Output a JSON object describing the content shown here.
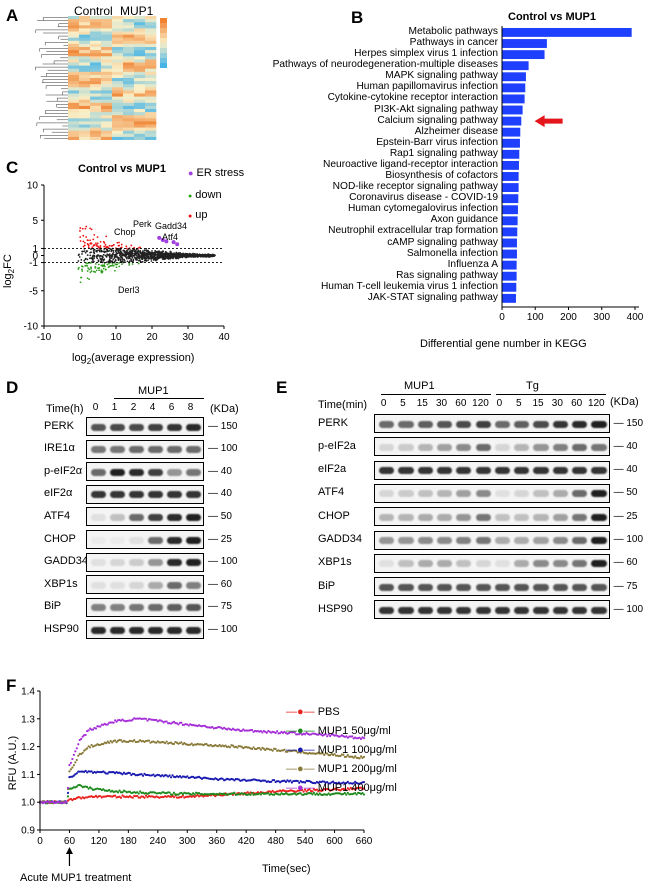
{
  "panels": {
    "A": "A",
    "B": "B",
    "C": "C",
    "D": "D",
    "E": "E",
    "F": "F"
  },
  "heatmap": {
    "groups": [
      "Control",
      "MUP1"
    ]
  },
  "kegg": {
    "title": "Control vs MUP1",
    "xlabel": "Differential gene number in KEGG",
    "ticks": [
      "0",
      "100",
      "200",
      "300",
      "400"
    ],
    "pathways": [
      "Metabolic pathways",
      "Pathways in cancer",
      "Herpes simplex virus 1 infection",
      "Pathways of neurodegeneration-multiple diseases",
      "MAPK signaling pathway",
      "Human papillomavirus infection",
      "Cytokine-cytokine receptor interaction",
      "PI3K-Akt signaling pathway",
      "Calcium signaling pathway",
      "Alzheimer disease",
      "Epstein-Barr virus infection",
      "Rap1 signaling pathway",
      "Neuroactive ligand-receptor interaction",
      "Biosynthesis of cofactors",
      "NOD-like receptor signaling pathway",
      "Coronavirus disease - COVID-19",
      "Human cytomegalovirus infection",
      "Axon guidance",
      "Neutrophil extracellular trap formation",
      "cAMP signaling pathway",
      "Salmonella infection",
      "Influenza A",
      "Ras signaling pathway",
      "Human T-cell leukemia virus 1 infection",
      "JAK-STAT signaling pathway"
    ],
    "values": [
      390,
      135,
      128,
      80,
      72,
      70,
      68,
      62,
      58,
      55,
      54,
      52,
      51,
      50,
      50,
      49,
      48,
      47,
      46,
      45,
      45,
      44,
      44,
      43,
      42
    ],
    "bar_color": "#1f3fff",
    "arrow_color": "#e4161b"
  },
  "ma": {
    "title": "Control vs MUP1",
    "xlabel": "log2(average expression)",
    "ylabel": "log2FC",
    "xticks": [
      "-10",
      "0",
      "10",
      "20",
      "30",
      "40"
    ],
    "yticks": [
      "10",
      "5",
      "1",
      "0",
      "-1",
      "-5",
      "-10"
    ],
    "legend": [
      "ER stress",
      "down",
      "up"
    ],
    "genes": [
      "Perk",
      "Chop",
      "Gadd34",
      "Atf4",
      "Derl3"
    ],
    "colors": {
      "up": "#ee1111",
      "down": "#2f9e1e",
      "ns": "#222222",
      "er": "#a040e0"
    }
  },
  "blotD": {
    "header": "MUP1",
    "time_label": "Time(h)",
    "times": [
      "0",
      "1",
      "2",
      "4",
      "6",
      "8"
    ],
    "unit": "(KDa)",
    "rows": [
      {
        "name": "PERK",
        "mw": [
          "150"
        ],
        "sig": [
          0.7,
          0.75,
          0.75,
          0.8,
          0.85,
          0.9
        ]
      },
      {
        "name": "IRE1α",
        "mw": [
          "100"
        ],
        "sig": [
          0.55,
          0.55,
          0.6,
          0.6,
          0.6,
          0.6
        ]
      },
      {
        "name": "p-eIF2α",
        "mw": [
          "40"
        ],
        "sig": [
          0.6,
          0.95,
          0.9,
          0.8,
          0.4,
          0.55
        ]
      },
      {
        "name": "eIF2α",
        "mw": [
          "40"
        ],
        "sig": [
          0.85,
          0.85,
          0.85,
          0.85,
          0.85,
          0.85
        ]
      },
      {
        "name": "ATF4",
        "mw": [
          "50"
        ],
        "sig": [
          0.05,
          0.2,
          0.6,
          0.8,
          0.9,
          0.95
        ]
      },
      {
        "name": "CHOP",
        "mw": [
          "25"
        ],
        "sig": [
          0.0,
          0.0,
          0.05,
          0.6,
          0.9,
          0.95
        ]
      },
      {
        "name": "GADD34",
        "mw": [
          "100"
        ],
        "sig": [
          0.05,
          0.1,
          0.15,
          0.4,
          0.9,
          0.95
        ]
      },
      {
        "name": "XBP1s",
        "mw": [
          "60"
        ],
        "sig": [
          0.05,
          0.05,
          0.1,
          0.3,
          0.6,
          0.5
        ]
      },
      {
        "name": "BiP",
        "mw": [
          "75"
        ],
        "sig": [
          0.5,
          0.5,
          0.55,
          0.6,
          0.65,
          0.7
        ]
      },
      {
        "name": "HSP90",
        "mw": [
          "100"
        ],
        "sig": [
          0.9,
          0.9,
          0.9,
          0.9,
          0.9,
          0.9
        ]
      }
    ]
  },
  "blotE": {
    "groups": [
      "MUP1",
      "Tg"
    ],
    "time_label": "Time(min)",
    "times": [
      "0",
      "5",
      "15",
      "30",
      "60",
      "120",
      "0",
      "5",
      "15",
      "30",
      "60",
      "120"
    ],
    "unit": "(KDa)",
    "rows": [
      {
        "name": "PERK",
        "mw": [
          "150"
        ],
        "sig": [
          0.6,
          0.6,
          0.65,
          0.7,
          0.75,
          0.8,
          0.6,
          0.65,
          0.75,
          0.85,
          0.9,
          0.95
        ]
      },
      {
        "name": "p-eIF2a",
        "mw": [
          "40"
        ],
        "sig": [
          0.1,
          0.15,
          0.25,
          0.35,
          0.45,
          0.6,
          0.1,
          0.25,
          0.4,
          0.5,
          0.6,
          0.55
        ]
      },
      {
        "name": "eIF2a",
        "mw": [
          "40"
        ],
        "sig": [
          0.85,
          0.85,
          0.85,
          0.85,
          0.85,
          0.85,
          0.85,
          0.85,
          0.85,
          0.85,
          0.85,
          0.85
        ]
      },
      {
        "name": "ATF4",
        "mw": [
          "50"
        ],
        "sig": [
          0.1,
          0.15,
          0.2,
          0.25,
          0.35,
          0.45,
          0.05,
          0.1,
          0.2,
          0.3,
          0.6,
          0.95
        ]
      },
      {
        "name": "CHOP",
        "mw": [
          "25"
        ],
        "sig": [
          0.25,
          0.25,
          0.3,
          0.3,
          0.4,
          0.55,
          0.2,
          0.2,
          0.25,
          0.35,
          0.55,
          0.95
        ]
      },
      {
        "name": "GADD34",
        "mw": [
          "100"
        ],
        "sig": [
          0.4,
          0.4,
          0.45,
          0.45,
          0.5,
          0.55,
          0.3,
          0.3,
          0.35,
          0.45,
          0.6,
          0.95
        ]
      },
      {
        "name": "XBP1s",
        "mw": [
          "60"
        ],
        "sig": [
          0.05,
          0.2,
          0.3,
          0.3,
          0.2,
          0.1,
          0.05,
          0.3,
          0.45,
          0.45,
          0.55,
          0.95
        ]
      },
      {
        "name": "BiP",
        "mw": [
          "75"
        ],
        "sig": [
          0.7,
          0.7,
          0.7,
          0.7,
          0.7,
          0.7,
          0.7,
          0.7,
          0.7,
          0.7,
          0.7,
          0.7
        ]
      },
      {
        "name": "HSP90",
        "mw": [
          "100"
        ],
        "sig": [
          0.85,
          0.85,
          0.85,
          0.85,
          0.85,
          0.85,
          0.85,
          0.85,
          0.85,
          0.85,
          0.85,
          0.85
        ]
      }
    ]
  },
  "chart_data": {
    "type": "line",
    "ylabel": "RFU (A.U.)",
    "xlabel": "Time(sec)",
    "xticks": [
      0,
      60,
      120,
      180,
      240,
      300,
      360,
      420,
      480,
      540,
      600,
      660
    ],
    "yticks": [
      0.9,
      1.0,
      1.1,
      1.2,
      1.3,
      1.4
    ],
    "xlim": [
      0,
      660
    ],
    "ylim": [
      0.9,
      1.4
    ],
    "annotation": "Acute MUP1 treatment",
    "series": [
      {
        "name": "PBS",
        "color": "#e8221e",
        "x": [
          0,
          55,
          60,
          100,
          150,
          200,
          300,
          400,
          500,
          600,
          660
        ],
        "y": [
          1.0,
          1.0,
          1.01,
          1.02,
          1.02,
          1.02,
          1.02,
          1.03,
          1.04,
          1.045,
          1.05
        ]
      },
      {
        "name": "MUP1 50μg/ml",
        "color": "#1e8a1e",
        "x": [
          0,
          55,
          60,
          80,
          100,
          150,
          200,
          300,
          400,
          500,
          600,
          660
        ],
        "y": [
          1.0,
          1.0,
          1.05,
          1.06,
          1.05,
          1.04,
          1.035,
          1.03,
          1.03,
          1.03,
          1.03,
          1.03
        ]
      },
      {
        "name": "MUP1 100μg/ml",
        "color": "#1a1ab0",
        "x": [
          0,
          55,
          60,
          80,
          100,
          150,
          200,
          300,
          400,
          500,
          600,
          660
        ],
        "y": [
          1.0,
          1.0,
          1.09,
          1.11,
          1.11,
          1.105,
          1.1,
          1.09,
          1.08,
          1.075,
          1.07,
          1.07
        ]
      },
      {
        "name": "MUP1 200μg/ml",
        "color": "#8a7a3a",
        "x": [
          0,
          55,
          60,
          80,
          100,
          150,
          200,
          300,
          400,
          500,
          600,
          660
        ],
        "y": [
          1.0,
          1.0,
          1.11,
          1.17,
          1.2,
          1.22,
          1.22,
          1.21,
          1.2,
          1.185,
          1.17,
          1.16
        ]
      },
      {
        "name": "MUP1 400μg/ml",
        "color": "#a630d8",
        "x": [
          0,
          55,
          60,
          80,
          100,
          150,
          200,
          250,
          300,
          400,
          500,
          600,
          660
        ],
        "y": [
          1.0,
          1.0,
          1.13,
          1.22,
          1.26,
          1.29,
          1.3,
          1.29,
          1.28,
          1.26,
          1.25,
          1.24,
          1.23
        ]
      }
    ]
  }
}
